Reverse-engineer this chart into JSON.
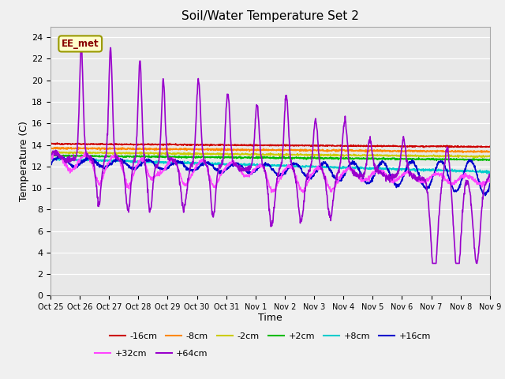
{
  "title": "Soil/Water Temperature Set 2",
  "xlabel": "Time",
  "ylabel": "Temperature (C)",
  "ylim": [
    0,
    25
  ],
  "yticks": [
    0,
    2,
    4,
    6,
    8,
    10,
    12,
    14,
    16,
    18,
    20,
    22,
    24
  ],
  "x_labels": [
    "Oct 25",
    "Oct 26",
    "Oct 27",
    "Oct 28",
    "Oct 29",
    "Oct 30",
    "Oct 31",
    "Nov 1",
    "Nov 2",
    "Nov 3",
    "Nov 4",
    "Nov 5",
    "Nov 6",
    "Nov 7",
    "Nov 8",
    "Nov 9"
  ],
  "legend_label": "EE_met",
  "series_order": [
    "-16cm",
    "-8cm",
    "-2cm",
    "+2cm",
    "+8cm",
    "+16cm",
    "+32cm",
    "+64cm"
  ],
  "series": {
    "-16cm": {
      "color": "#cc0000",
      "linewidth": 1.2
    },
    "-8cm": {
      "color": "#ff8800",
      "linewidth": 1.2
    },
    "-2cm": {
      "color": "#cccc00",
      "linewidth": 1.2
    },
    "+2cm": {
      "color": "#00bb00",
      "linewidth": 1.2
    },
    "+8cm": {
      "color": "#00cccc",
      "linewidth": 1.2
    },
    "+16cm": {
      "color": "#0000cc",
      "linewidth": 1.2
    },
    "+32cm": {
      "color": "#ff44ff",
      "linewidth": 1.2
    },
    "+64cm": {
      "color": "#9900cc",
      "linewidth": 1.2
    }
  },
  "bg_color": "#e8e8e8",
  "fig_bg": "#f0f0f0",
  "figsize": [
    6.4,
    4.8
  ],
  "dpi": 100,
  "legend_ncol_row1": 6,
  "legend_ncol_row2": 2
}
